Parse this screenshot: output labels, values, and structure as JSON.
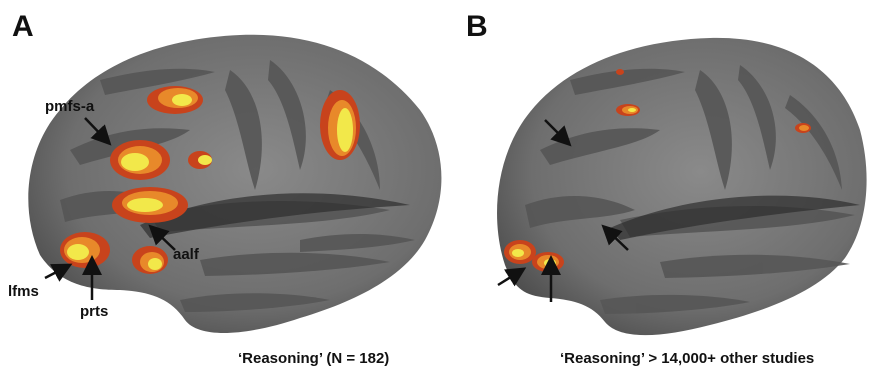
{
  "panels": [
    {
      "letter": "A",
      "caption": "‘Reasoning’ (N = 182)",
      "annotations": [
        "pmfs-a",
        "aalf",
        "lfms",
        "prts"
      ]
    },
    {
      "letter": "B",
      "caption": "‘Reasoning’ > 14,000+ other studies"
    }
  ],
  "colors": {
    "background": "#ffffff",
    "cortex_light": "#7b7b7b",
    "cortex_dark": "#555555",
    "activation_red": "#c8431c",
    "activation_orange": "#e8892a",
    "activation_yellow": "#f2e84a",
    "arrow": "#111111"
  }
}
